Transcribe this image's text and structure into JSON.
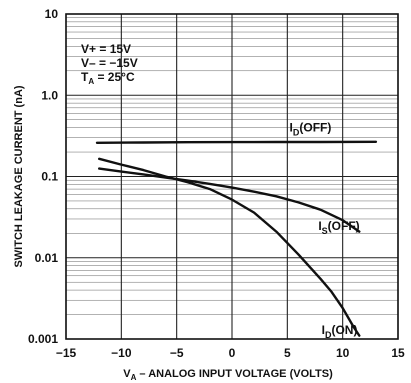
{
  "chart_data": {
    "type": "line",
    "xlabel": "V_A – ANALOG INPUT VOLTAGE (VOLTS)",
    "xlabel_parts": {
      "main": "V",
      "sub": "A",
      "rest": " – ANALOG INPUT VOLTAGE (VOLTS)"
    },
    "ylabel": "SWITCH LEAKAGE CURRENT (nA)",
    "xlim": [
      -15,
      15
    ],
    "ylim": [
      0.001,
      10
    ],
    "y_scale": "log",
    "grid": true,
    "x_ticks": [
      {
        "value": -15,
        "label": "−15"
      },
      {
        "value": -10,
        "label": "−10"
      },
      {
        "value": -5,
        "label": "−5"
      },
      {
        "value": 0,
        "label": "0"
      },
      {
        "value": 5,
        "label": "5"
      },
      {
        "value": 10,
        "label": "10"
      },
      {
        "value": 15,
        "label": "15"
      }
    ],
    "y_ticks": [
      {
        "value": 10,
        "label": "10"
      },
      {
        "value": 1,
        "label": "1.0"
      },
      {
        "value": 0.1,
        "label": "0.1"
      },
      {
        "value": 0.01,
        "label": "0.01"
      },
      {
        "value": 0.001,
        "label": "0.001"
      }
    ],
    "conditions": [
      {
        "main": "V+ = 15V",
        "sub": ""
      },
      {
        "main": "V– = −15V",
        "sub": ""
      },
      {
        "main": "T",
        "sub": "A",
        "rest": " = 25°C"
      }
    ],
    "series": [
      {
        "name": "I_D(OFF)",
        "label": {
          "main": "I",
          "sub": "D",
          "rest": "(OFF)"
        },
        "x": [
          -12.2,
          -8,
          -4,
          0,
          4,
          8,
          13
        ],
        "y": [
          0.26,
          0.262,
          0.264,
          0.265,
          0.266,
          0.266,
          0.267
        ]
      },
      {
        "name": "I_S(OFF)",
        "label": {
          "main": "I",
          "sub": "S",
          "rest": "(OFF)"
        },
        "x": [
          -12,
          -10,
          -8,
          -6,
          -4,
          -2,
          0,
          2,
          4,
          6,
          8,
          10,
          11.5
        ],
        "y": [
          0.125,
          0.115,
          0.106,
          0.097,
          0.089,
          0.081,
          0.073,
          0.065,
          0.057,
          0.048,
          0.039,
          0.029,
          0.021
        ]
      },
      {
        "name": "I_D(ON)",
        "label": {
          "main": "I",
          "sub": "D",
          "rest": "(ON)"
        },
        "x": [
          -12,
          -10,
          -8,
          -6,
          -4,
          -2,
          0,
          2,
          4,
          6,
          8,
          9,
          10,
          11,
          11.5
        ],
        "y": [
          0.165,
          0.14,
          0.12,
          0.1,
          0.085,
          0.07,
          0.052,
          0.036,
          0.021,
          0.011,
          0.0055,
          0.0038,
          0.0024,
          0.0014,
          0.0011
        ]
      }
    ]
  }
}
